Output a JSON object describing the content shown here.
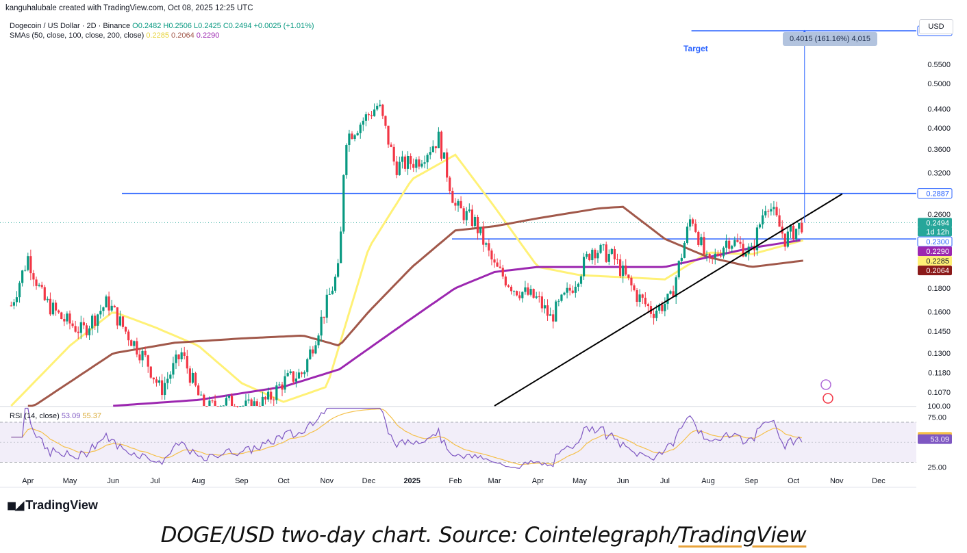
{
  "header": {
    "attribution": "kanguhalubale created with TradingView.com, Oct 08, 2025 12:25 UTC"
  },
  "legend": {
    "symbol": "Dogecoin / US Dollar · 2D · Binance",
    "ohlc": "O0.2482 H0.2506 L0.2425 C0.2494 +0.0025 (+1.01%)",
    "sma_label": "SMAs (50, close, 100, close, 200, close)",
    "sma50": "0.2285",
    "sma100": "0.2064",
    "sma200": "0.2290",
    "rsi_label": "RSI (14, close)",
    "rsi_value": "53.09",
    "rsi_ma": "55.37"
  },
  "currency_button": "USD",
  "annotations": {
    "target_label": "Target",
    "measure_text": "0.4015 (161.16%) 4,015"
  },
  "logo": {
    "text": "TradingView"
  },
  "caption": {
    "prefix": "DOGE/USD two-day chart. Source: Cointelegraph/",
    "link": "TradingView"
  },
  "colors": {
    "up": "#089981",
    "down": "#f23645",
    "sma50": "#fff176",
    "sma100": "#a1584a",
    "sma200": "#9c27b0",
    "hline": "#2962ff",
    "rsi": "#7e57c2",
    "rsi_ma": "#f5c04a",
    "price_tag": "#2962ff",
    "last_price": "#26a69a"
  },
  "chart_data": [
    {
      "type": "candlestick",
      "title": "Dogecoin / US Dollar · 2D · Binance",
      "y_scale": "log",
      "ylim": [
        0.1,
        0.72
      ],
      "x_ticks": [
        "Apr",
        "May",
        "Jun",
        "Jul",
        "Aug",
        "Sep",
        "Oct",
        "Nov",
        "Dec",
        "2025",
        "Feb",
        "Mar",
        "Apr",
        "May",
        "Jun",
        "Jul",
        "Aug",
        "Sep",
        "Oct",
        "Nov",
        "Dec"
      ],
      "y_ticks": [
        "0.5500",
        "0.5000",
        "0.4400",
        "0.4000",
        "0.3600",
        "0.3200",
        "0.2600",
        "0.1800",
        "0.1600",
        "0.1450",
        "0.1300",
        "0.1180",
        "0.1070",
        "100.00"
      ],
      "price_tags": [
        {
          "value": "0.6500",
          "kind": "target"
        },
        {
          "value": "0.2887",
          "kind": "level"
        },
        {
          "value": "0.2494",
          "kind": "last"
        },
        {
          "value": "1d 12h",
          "kind": "countdown"
        },
        {
          "value": "0.2300",
          "kind": "level"
        },
        {
          "value": "0.2290",
          "kind": "sma200"
        },
        {
          "value": "0.2285",
          "kind": "sma50"
        },
        {
          "value": "0.2064",
          "kind": "sma100"
        }
      ],
      "horizontal_levels": [
        0.65,
        0.2887,
        0.23
      ],
      "trendline": {
        "from": [
          "2025-03-01",
          0.1
        ],
        "to": [
          "2025-11-05",
          0.288
        ]
      },
      "closes_anchor_points": [
        [
          "2024-03-20",
          0.165
        ],
        [
          "2024-04-01",
          0.21
        ],
        [
          "2024-04-12",
          0.17
        ],
        [
          "2024-04-25",
          0.155
        ],
        [
          "2024-05-10",
          0.145
        ],
        [
          "2024-05-28",
          0.168
        ],
        [
          "2024-06-10",
          0.145
        ],
        [
          "2024-06-25",
          0.125
        ],
        [
          "2024-07-05",
          0.108
        ],
        [
          "2024-07-20",
          0.13
        ],
        [
          "2024-08-05",
          0.098
        ],
        [
          "2024-08-20",
          0.102
        ],
        [
          "2024-09-05",
          0.099
        ],
        [
          "2024-09-20",
          0.103
        ],
        [
          "2024-10-01",
          0.113
        ],
        [
          "2024-10-15",
          0.118
        ],
        [
          "2024-10-30",
          0.16
        ],
        [
          "2024-11-10",
          0.2
        ],
        [
          "2024-11-14",
          0.38
        ],
        [
          "2024-11-25",
          0.41
        ],
        [
          "2024-12-08",
          0.45
        ],
        [
          "2024-12-20",
          0.33
        ],
        [
          "2025-01-05",
          0.34
        ],
        [
          "2025-01-20",
          0.38
        ],
        [
          "2025-02-01",
          0.27
        ],
        [
          "2025-02-15",
          0.25
        ],
        [
          "2025-03-01",
          0.2
        ],
        [
          "2025-03-15",
          0.18
        ],
        [
          "2025-04-01",
          0.17
        ],
        [
          "2025-04-10",
          0.155
        ],
        [
          "2025-04-25",
          0.18
        ],
        [
          "2025-05-10",
          0.22
        ],
        [
          "2025-05-25",
          0.21
        ],
        [
          "2025-06-10",
          0.175
        ],
        [
          "2025-06-22",
          0.16
        ],
        [
          "2025-07-05",
          0.17
        ],
        [
          "2025-07-20",
          0.26
        ],
        [
          "2025-08-01",
          0.2
        ],
        [
          "2025-08-15",
          0.23
        ],
        [
          "2025-09-01",
          0.215
        ],
        [
          "2025-09-12",
          0.28
        ],
        [
          "2025-09-25",
          0.23
        ],
        [
          "2025-10-08",
          0.2494
        ]
      ],
      "sma50_points": [
        [
          "2024-03-20",
          0.1
        ],
        [
          "2024-05-01",
          0.135
        ],
        [
          "2024-06-01",
          0.16
        ],
        [
          "2024-07-01",
          0.148
        ],
        [
          "2024-08-01",
          0.135
        ],
        [
          "2024-09-01",
          0.112
        ],
        [
          "2024-10-01",
          0.102
        ],
        [
          "2024-11-01",
          0.11
        ],
        [
          "2024-12-01",
          0.22
        ],
        [
          "2025-01-01",
          0.31
        ],
        [
          "2025-02-01",
          0.35
        ],
        [
          "2025-03-01",
          0.27
        ],
        [
          "2025-04-01",
          0.2
        ],
        [
          "2025-05-01",
          0.192
        ],
        [
          "2025-06-01",
          0.19
        ],
        [
          "2025-07-01",
          0.188
        ],
        [
          "2025-08-01",
          0.215
        ],
        [
          "2025-09-01",
          0.213
        ],
        [
          "2025-10-08",
          0.2285
        ]
      ],
      "sma100_points": [
        [
          "2024-04-01",
          0.098
        ],
        [
          "2024-06-01",
          0.13
        ],
        [
          "2024-07-15",
          0.137
        ],
        [
          "2024-09-01",
          0.14
        ],
        [
          "2024-10-15",
          0.142
        ],
        [
          "2024-11-10",
          0.135
        ],
        [
          "2024-12-01",
          0.16
        ],
        [
          "2025-01-01",
          0.2
        ],
        [
          "2025-02-01",
          0.24
        ],
        [
          "2025-03-01",
          0.245
        ],
        [
          "2025-04-01",
          0.255
        ],
        [
          "2025-05-15",
          0.268
        ],
        [
          "2025-06-01",
          0.27
        ],
        [
          "2025-07-01",
          0.23
        ],
        [
          "2025-08-01",
          0.21
        ],
        [
          "2025-09-01",
          0.2
        ],
        [
          "2025-10-08",
          0.2064
        ]
      ],
      "sma200_points": [
        [
          "2024-06-01",
          0.1
        ],
        [
          "2024-08-01",
          0.103
        ],
        [
          "2024-10-01",
          0.11
        ],
        [
          "2024-11-10",
          0.12
        ],
        [
          "2025-01-01",
          0.155
        ],
        [
          "2025-02-01",
          0.18
        ],
        [
          "2025-03-01",
          0.195
        ],
        [
          "2025-04-01",
          0.2
        ],
        [
          "2025-05-01",
          0.2
        ],
        [
          "2025-06-01",
          0.2
        ],
        [
          "2025-07-01",
          0.2
        ],
        [
          "2025-08-01",
          0.21
        ],
        [
          "2025-09-01",
          0.22
        ],
        [
          "2025-10-08",
          0.229
        ]
      ]
    },
    {
      "type": "line",
      "title": "RSI (14, close)",
      "ylim": [
        20,
        85
      ],
      "y_ticks": [
        "75.00",
        "25.00"
      ],
      "band": [
        30,
        70
      ],
      "series": [
        {
          "name": "RSI (14, close)",
          "last": 53.09
        },
        {
          "name": "RSI MA",
          "last": 55.37
        }
      ]
    }
  ]
}
